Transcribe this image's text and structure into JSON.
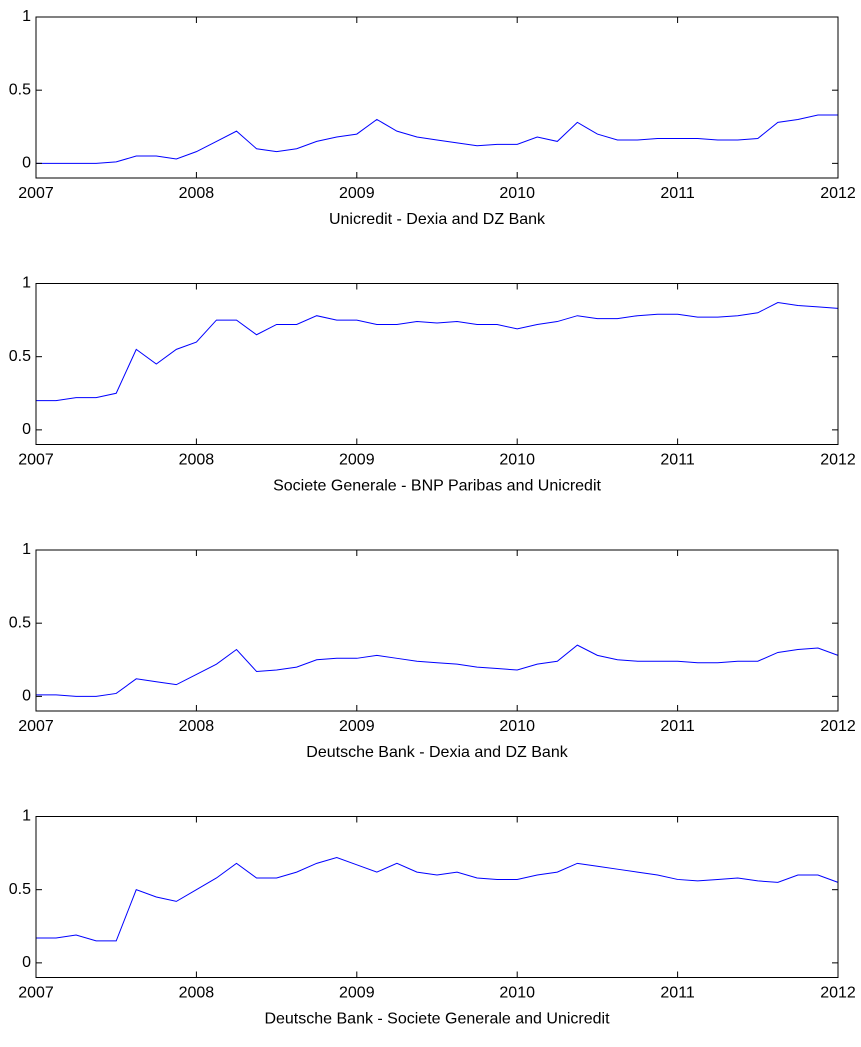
{
  "chart_data": [
    {
      "type": "line",
      "xlabel": "Unicredit - Dexia and DZ Bank",
      "x": [
        2007,
        2007.125,
        2007.25,
        2007.375,
        2007.5,
        2007.625,
        2007.75,
        2007.875,
        2008,
        2008.125,
        2008.25,
        2008.375,
        2008.5,
        2008.625,
        2008.75,
        2008.875,
        2009,
        2009.125,
        2009.25,
        2009.375,
        2009.5,
        2009.625,
        2009.75,
        2009.875,
        2010,
        2010.125,
        2010.25,
        2010.375,
        2010.5,
        2010.625,
        2010.75,
        2010.875,
        2011,
        2011.125,
        2011.25,
        2011.375,
        2011.5,
        2011.625,
        2011.75,
        2011.875,
        2012
      ],
      "series": [
        {
          "color": "#0000ff",
          "values": [
            0.0,
            0.0,
            0.0,
            0.0,
            0.01,
            0.05,
            0.05,
            0.03,
            0.08,
            0.15,
            0.22,
            0.1,
            0.08,
            0.1,
            0.15,
            0.18,
            0.2,
            0.3,
            0.22,
            0.18,
            0.16,
            0.14,
            0.12,
            0.13,
            0.13,
            0.18,
            0.15,
            0.28,
            0.2,
            0.16,
            0.16,
            0.17,
            0.17,
            0.17,
            0.16,
            0.16,
            0.17,
            0.28,
            0.3,
            0.33,
            0.33
          ]
        }
      ],
      "xlim": [
        2007,
        2012
      ],
      "ylim": [
        -0.1,
        1
      ],
      "xticks": [
        2007,
        2008,
        2009,
        2010,
        2011,
        2012
      ],
      "yticks": [
        0,
        0.5,
        1
      ]
    },
    {
      "type": "line",
      "xlabel": "Societe Generale - BNP Paribas and Unicredit",
      "x": [
        2007,
        2007.125,
        2007.25,
        2007.375,
        2007.5,
        2007.625,
        2007.75,
        2007.875,
        2008,
        2008.125,
        2008.25,
        2008.375,
        2008.5,
        2008.625,
        2008.75,
        2008.875,
        2009,
        2009.125,
        2009.25,
        2009.375,
        2009.5,
        2009.625,
        2009.75,
        2009.875,
        2010,
        2010.125,
        2010.25,
        2010.375,
        2010.5,
        2010.625,
        2010.75,
        2010.875,
        2011,
        2011.125,
        2011.25,
        2011.375,
        2011.5,
        2011.625,
        2011.75,
        2011.875,
        2012
      ],
      "series": [
        {
          "color": "#0000ff",
          "values": [
            0.2,
            0.2,
            0.22,
            0.22,
            0.25,
            0.55,
            0.45,
            0.55,
            0.6,
            0.75,
            0.75,
            0.65,
            0.72,
            0.72,
            0.78,
            0.75,
            0.75,
            0.72,
            0.72,
            0.74,
            0.73,
            0.74,
            0.72,
            0.72,
            0.69,
            0.72,
            0.74,
            0.78,
            0.76,
            0.76,
            0.78,
            0.79,
            0.79,
            0.77,
            0.77,
            0.78,
            0.8,
            0.87,
            0.85,
            0.84,
            0.83
          ]
        }
      ],
      "xlim": [
        2007,
        2012
      ],
      "ylim": [
        -0.1,
        1
      ],
      "xticks": [
        2007,
        2008,
        2009,
        2010,
        2011,
        2012
      ],
      "yticks": [
        0,
        0.5,
        1
      ]
    },
    {
      "type": "line",
      "xlabel": "Deutsche Bank - Dexia and DZ Bank",
      "x": [
        2007,
        2007.125,
        2007.25,
        2007.375,
        2007.5,
        2007.625,
        2007.75,
        2007.875,
        2008,
        2008.125,
        2008.25,
        2008.375,
        2008.5,
        2008.625,
        2008.75,
        2008.875,
        2009,
        2009.125,
        2009.25,
        2009.375,
        2009.5,
        2009.625,
        2009.75,
        2009.875,
        2010,
        2010.125,
        2010.25,
        2010.375,
        2010.5,
        2010.625,
        2010.75,
        2010.875,
        2011,
        2011.125,
        2011.25,
        2011.375,
        2011.5,
        2011.625,
        2011.75,
        2011.875,
        2012
      ],
      "series": [
        {
          "color": "#0000ff",
          "values": [
            0.01,
            0.01,
            0.0,
            0.0,
            0.02,
            0.12,
            0.1,
            0.08,
            0.15,
            0.22,
            0.32,
            0.17,
            0.18,
            0.2,
            0.25,
            0.26,
            0.26,
            0.28,
            0.26,
            0.24,
            0.23,
            0.22,
            0.2,
            0.19,
            0.18,
            0.22,
            0.24,
            0.35,
            0.28,
            0.25,
            0.24,
            0.24,
            0.24,
            0.23,
            0.23,
            0.24,
            0.24,
            0.3,
            0.32,
            0.33,
            0.28
          ]
        }
      ],
      "xlim": [
        2007,
        2012
      ],
      "ylim": [
        -0.1,
        1
      ],
      "xticks": [
        2007,
        2008,
        2009,
        2010,
        2011,
        2012
      ],
      "yticks": [
        0,
        0.5,
        1
      ]
    },
    {
      "type": "line",
      "xlabel": "Deutsche Bank - Societe Generale and Unicredit",
      "x": [
        2007,
        2007.125,
        2007.25,
        2007.375,
        2007.5,
        2007.625,
        2007.75,
        2007.875,
        2008,
        2008.125,
        2008.25,
        2008.375,
        2008.5,
        2008.625,
        2008.75,
        2008.875,
        2009,
        2009.125,
        2009.25,
        2009.375,
        2009.5,
        2009.625,
        2009.75,
        2009.875,
        2010,
        2010.125,
        2010.25,
        2010.375,
        2010.5,
        2010.625,
        2010.75,
        2010.875,
        2011,
        2011.125,
        2011.25,
        2011.375,
        2011.5,
        2011.625,
        2011.75,
        2011.875,
        2012
      ],
      "series": [
        {
          "color": "#0000ff",
          "values": [
            0.17,
            0.17,
            0.19,
            0.15,
            0.15,
            0.5,
            0.45,
            0.42,
            0.5,
            0.58,
            0.68,
            0.58,
            0.58,
            0.62,
            0.68,
            0.72,
            0.67,
            0.62,
            0.68,
            0.62,
            0.6,
            0.62,
            0.58,
            0.57,
            0.57,
            0.6,
            0.62,
            0.68,
            0.66,
            0.64,
            0.62,
            0.6,
            0.57,
            0.56,
            0.57,
            0.58,
            0.56,
            0.55,
            0.6,
            0.6,
            0.55
          ]
        }
      ],
      "xlim": [
        2007,
        2012
      ],
      "ylim": [
        -0.1,
        1
      ],
      "xticks": [
        2007,
        2008,
        2009,
        2010,
        2011,
        2012
      ],
      "yticks": [
        0,
        0.5,
        1
      ]
    }
  ]
}
